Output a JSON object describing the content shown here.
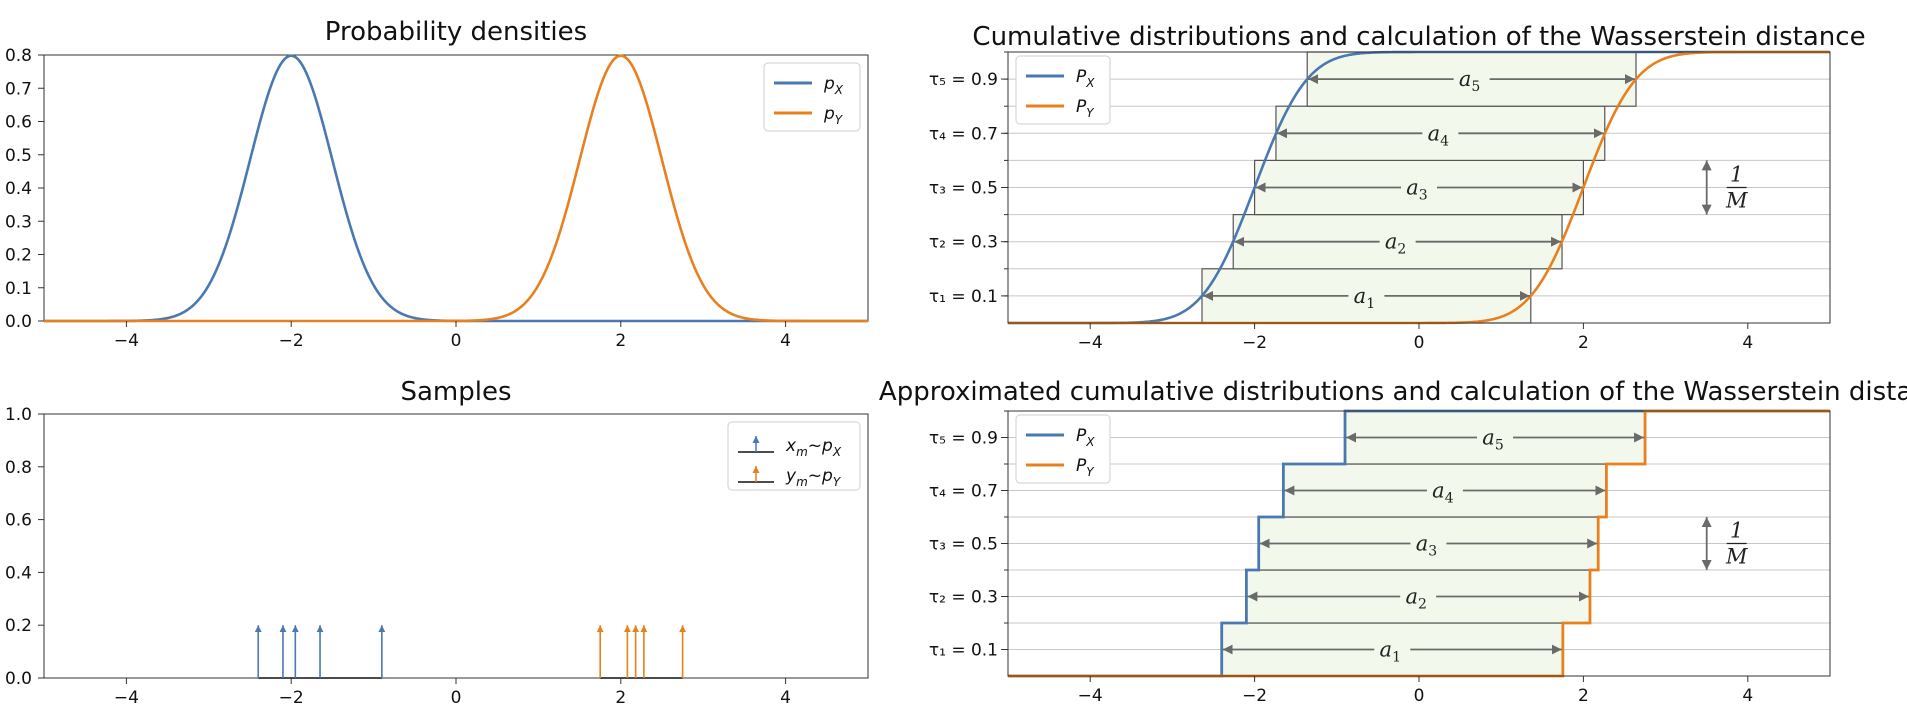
{
  "colors": {
    "blue": "#4a78b0",
    "orange": "#e8801e",
    "grid": "#c8c8c8",
    "fill": "#f3f8ec",
    "arrow": "#6a6a6a",
    "frame": "#333333"
  },
  "chart_data": [
    {
      "id": "density",
      "type": "line",
      "title": "Probability densities",
      "xlim": [
        -5,
        5
      ],
      "ylim": [
        0,
        0.8
      ],
      "xticks": [
        "−4",
        "−2",
        "0",
        "2",
        "4"
      ],
      "xtick_values": [
        -4,
        -2,
        0,
        2,
        4
      ],
      "yticks": [
        "0.0",
        "0.1",
        "0.2",
        "0.3",
        "0.4",
        "0.5",
        "0.6",
        "0.7",
        "0.8"
      ],
      "ytick_values": [
        0,
        0.1,
        0.2,
        0.3,
        0.4,
        0.5,
        0.6,
        0.7,
        0.8
      ],
      "legend_position": "top-right",
      "series": [
        {
          "name": "p_X",
          "legend_base": "p",
          "legend_sub": "X",
          "dist": "normal",
          "mean": -2,
          "std": 0.5,
          "color": "#4a78b0"
        },
        {
          "name": "p_Y",
          "legend_base": "p",
          "legend_sub": "Y",
          "dist": "normal",
          "mean": 2,
          "std": 0.5,
          "color": "#e8801e"
        }
      ]
    },
    {
      "id": "samples",
      "type": "stem",
      "title": "Samples",
      "xlim": [
        -5,
        5
      ],
      "ylim": [
        0,
        1.0
      ],
      "xticks": [
        "−4",
        "−2",
        "0",
        "2",
        "4"
      ],
      "xtick_values": [
        -4,
        -2,
        0,
        2,
        4
      ],
      "yticks": [
        "0.0",
        "0.2",
        "0.4",
        "0.6",
        "0.8",
        "1.0"
      ],
      "ytick_values": [
        0,
        0.2,
        0.4,
        0.6,
        0.8,
        1.0
      ],
      "legend_position": "top-right",
      "series": [
        {
          "name": "x_m ~ p_X",
          "legend_a": "x",
          "legend_a_sub": "m",
          "legend_tilde": "~",
          "legend_b": "p",
          "legend_b_sub": "X",
          "color": "#4a78b0",
          "x": [
            -2.4,
            -2.1,
            -1.95,
            -1.65,
            -0.9
          ],
          "values": [
            0.2,
            0.2,
            0.2,
            0.2,
            0.2
          ]
        },
        {
          "name": "y_m ~ p_Y",
          "legend_a": "y",
          "legend_a_sub": "m",
          "legend_tilde": "~",
          "legend_b": "p",
          "legend_b_sub": "Y",
          "color": "#e8801e",
          "x": [
            1.75,
            2.08,
            2.18,
            2.28,
            2.75
          ],
          "values": [
            0.2,
            0.2,
            0.2,
            0.2,
            0.2
          ]
        }
      ]
    },
    {
      "id": "cdf",
      "type": "line",
      "title": "Cumulative distributions  and calculation of the  Wasserstein distance",
      "xlim": [
        -5,
        5
      ],
      "ylim": [
        0,
        1
      ],
      "xticks": [
        "−4",
        "−2",
        "0",
        "2",
        "4"
      ],
      "xtick_values": [
        -4,
        -2,
        0,
        2,
        4
      ],
      "yticks": [
        "τ₁ = 0.1",
        "τ₂ = 0.3",
        "τ₃ = 0.5",
        "τ₄ = 0.7",
        "τ₅ = 0.9"
      ],
      "ytick_values": [
        0.1,
        0.3,
        0.5,
        0.7,
        0.9
      ],
      "gridlines": [
        0.1,
        0.2,
        0.3,
        0.4,
        0.5,
        0.6,
        0.7,
        0.8,
        0.9,
        1.0
      ],
      "legend_position": "top-left",
      "series": [
        {
          "name": "P_X",
          "legend_base": "P",
          "legend_sub": "X",
          "dist": "normal_cdf",
          "mean": -2,
          "std": 0.5,
          "color": "#4a78b0"
        },
        {
          "name": "P_Y",
          "legend_base": "P",
          "legend_sub": "Y",
          "dist": "normal_cdf",
          "mean": 2,
          "std": 0.5,
          "color": "#e8801e"
        }
      ],
      "bands": [
        {
          "label": "a",
          "sub": "1",
          "tau": 0.1,
          "x_left": -2.64,
          "x_right": 1.36
        },
        {
          "label": "a",
          "sub": "2",
          "tau": 0.3,
          "x_left": -2.26,
          "x_right": 1.74
        },
        {
          "label": "a",
          "sub": "3",
          "tau": 0.5,
          "x_left": -2.0,
          "x_right": 2.0
        },
        {
          "label": "a",
          "sub": "4",
          "tau": 0.7,
          "x_left": -1.74,
          "x_right": 2.26
        },
        {
          "label": "a",
          "sub": "5",
          "tau": 0.9,
          "x_left": -1.36,
          "x_right": 2.64
        }
      ],
      "step_label": {
        "num": "1",
        "den": "M",
        "x": 3.5,
        "y_from": 0.4,
        "y_to": 0.6
      }
    },
    {
      "id": "approx_cdf",
      "type": "step",
      "title": "Approximated cumulative distributions and calculation of the  Wasserstein distance",
      "xlim": [
        -5,
        5
      ],
      "ylim": [
        0,
        1
      ],
      "xticks": [
        "−4",
        "−2",
        "0",
        "2",
        "4"
      ],
      "xtick_values": [
        -4,
        -2,
        0,
        2,
        4
      ],
      "yticks": [
        "τ₁ = 0.1",
        "τ₂ = 0.3",
        "τ₃ = 0.5",
        "τ₄ = 0.7",
        "τ₅ = 0.9"
      ],
      "ytick_values": [
        0.1,
        0.3,
        0.5,
        0.7,
        0.9
      ],
      "gridlines": [
        0.1,
        0.2,
        0.3,
        0.4,
        0.5,
        0.6,
        0.7,
        0.8,
        0.9,
        1.0
      ],
      "legend_position": "top-left",
      "series": [
        {
          "name": "P_X",
          "legend_base": "P",
          "legend_sub": "X",
          "color": "#4a78b0",
          "x": [
            -2.4,
            -2.1,
            -1.95,
            -1.65,
            -0.9
          ]
        },
        {
          "name": "P_Y",
          "legend_base": "P",
          "legend_sub": "Y",
          "color": "#e8801e",
          "x": [
            1.75,
            2.08,
            2.18,
            2.28,
            2.75
          ]
        }
      ],
      "bands": [
        {
          "label": "a",
          "sub": "1",
          "tau": 0.1,
          "x_left": -2.4,
          "x_right": 1.75
        },
        {
          "label": "a",
          "sub": "2",
          "tau": 0.3,
          "x_left": -2.1,
          "x_right": 2.08
        },
        {
          "label": "a",
          "sub": "3",
          "tau": 0.5,
          "x_left": -1.95,
          "x_right": 2.18
        },
        {
          "label": "a",
          "sub": "4",
          "tau": 0.7,
          "x_left": -1.65,
          "x_right": 2.28
        },
        {
          "label": "a",
          "sub": "5",
          "tau": 0.9,
          "x_left": -0.9,
          "x_right": 2.75
        }
      ],
      "step_label": {
        "num": "1",
        "den": "M",
        "x": 3.5,
        "y_from": 0.4,
        "y_to": 0.6
      }
    }
  ]
}
